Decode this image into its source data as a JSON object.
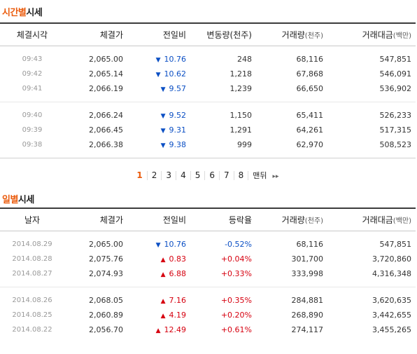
{
  "hourly": {
    "title_highlight": "시간별",
    "title_rest": "시세",
    "headers": {
      "time": "체결시각",
      "price": "체결가",
      "change": "전일비",
      "vol_change": "변동량(천주)",
      "volume": "거래량",
      "volume_unit": "(천주)",
      "amount": "거래대금",
      "amount_unit": "(백만)"
    },
    "rows": [
      {
        "time": "09:43",
        "price": "2,065.00",
        "dir": "down",
        "change": "10.76",
        "vol_change": "248",
        "volume": "68,116",
        "amount": "547,851"
      },
      {
        "time": "09:42",
        "price": "2,065.14",
        "dir": "down",
        "change": "10.62",
        "vol_change": "1,218",
        "volume": "67,868",
        "amount": "546,091"
      },
      {
        "time": "09:41",
        "price": "2,066.19",
        "dir": "down",
        "change": "9.57",
        "vol_change": "1,239",
        "volume": "66,650",
        "amount": "536,902"
      },
      {
        "time": "09:40",
        "price": "2,066.24",
        "dir": "down",
        "change": "9.52",
        "vol_change": "1,150",
        "volume": "65,411",
        "amount": "526,233"
      },
      {
        "time": "09:39",
        "price": "2,066.45",
        "dir": "down",
        "change": "9.31",
        "vol_change": "1,291",
        "volume": "64,261",
        "amount": "517,315"
      },
      {
        "time": "09:38",
        "price": "2,066.38",
        "dir": "down",
        "change": "9.38",
        "vol_change": "999",
        "volume": "62,970",
        "amount": "508,523"
      }
    ]
  },
  "pagination": {
    "pages": [
      "1",
      "2",
      "3",
      "4",
      "5",
      "6",
      "7",
      "8"
    ],
    "current": "1",
    "last_label": "맨뒤",
    "next_label": "▸▸"
  },
  "daily": {
    "title_highlight": "일별",
    "title_rest": "시세",
    "headers": {
      "date": "날자",
      "price": "체결가",
      "change": "전일비",
      "rate": "등락율",
      "volume": "거래량",
      "volume_unit": "(천주)",
      "amount": "거래대금",
      "amount_unit": "(백만)"
    },
    "rows": [
      {
        "date": "2014.08.29",
        "price": "2,065.00",
        "dir": "down",
        "change": "10.76",
        "rate": "-0.52%",
        "volume": "68,116",
        "amount": "547,851"
      },
      {
        "date": "2014.08.28",
        "price": "2,075.76",
        "dir": "up",
        "change": "0.83",
        "rate": "+0.04%",
        "volume": "301,700",
        "amount": "3,720,860"
      },
      {
        "date": "2014.08.27",
        "price": "2,074.93",
        "dir": "up",
        "change": "6.88",
        "rate": "+0.33%",
        "volume": "333,998",
        "amount": "4,316,348"
      },
      {
        "date": "2014.08.26",
        "price": "2,068.05",
        "dir": "up",
        "change": "7.16",
        "rate": "+0.35%",
        "volume": "284,881",
        "amount": "3,620,635"
      },
      {
        "date": "2014.08.25",
        "price": "2,060.89",
        "dir": "up",
        "change": "4.19",
        "rate": "+0.20%",
        "volume": "268,890",
        "amount": "3,442,655"
      },
      {
        "date": "2014.08.22",
        "price": "2,056.70",
        "dir": "up",
        "change": "12.49",
        "rate": "+0.61%",
        "volume": "274,117",
        "amount": "3,455,265"
      }
    ]
  },
  "arrows": {
    "up": "▲",
    "down": "▼"
  },
  "colors": {
    "accent": "#ea5b0c",
    "up": "#d6000f",
    "down": "#0b4fc4"
  }
}
